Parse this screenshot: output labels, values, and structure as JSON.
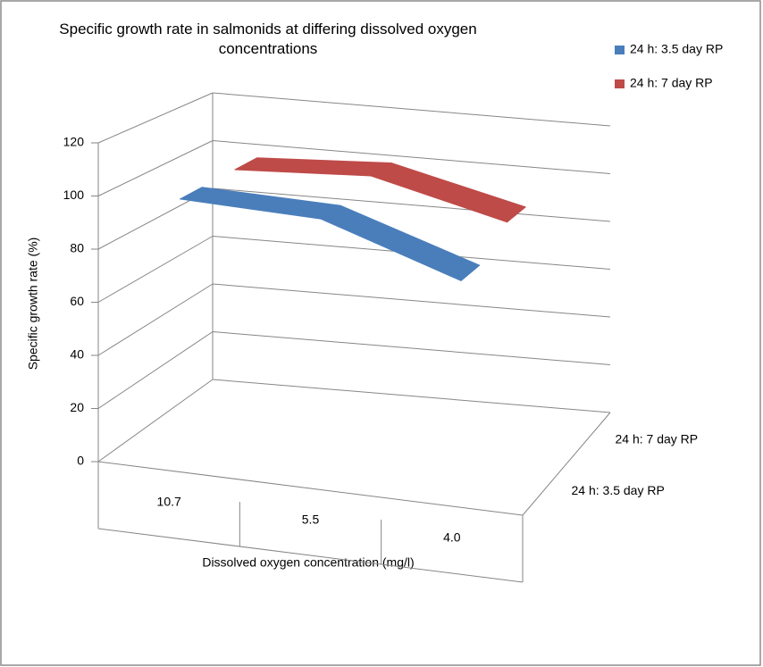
{
  "chart_data": {
    "type": "line3d",
    "title": "Specific growth rate in salmonids at differing dissolved oxygen concentrations",
    "x_label": "Dissolved oxygen concentration (mg/l)",
    "y_label": "Specific growth rate (%)",
    "categories": [
      "10.7",
      "5.5",
      "4.0"
    ],
    "series": [
      {
        "name": "24 h: 3.5 day RP",
        "color": "#4a7ebb",
        "values": [
          100,
          99,
          82
        ]
      },
      {
        "name": "24 h: 7 day RP",
        "color": "#be4b48",
        "values": [
          100,
          103,
          90
        ]
      }
    ],
    "ylim": [
      0,
      120
    ],
    "yticks": [
      0,
      20,
      40,
      60,
      80,
      100,
      120
    ],
    "grid": true
  }
}
